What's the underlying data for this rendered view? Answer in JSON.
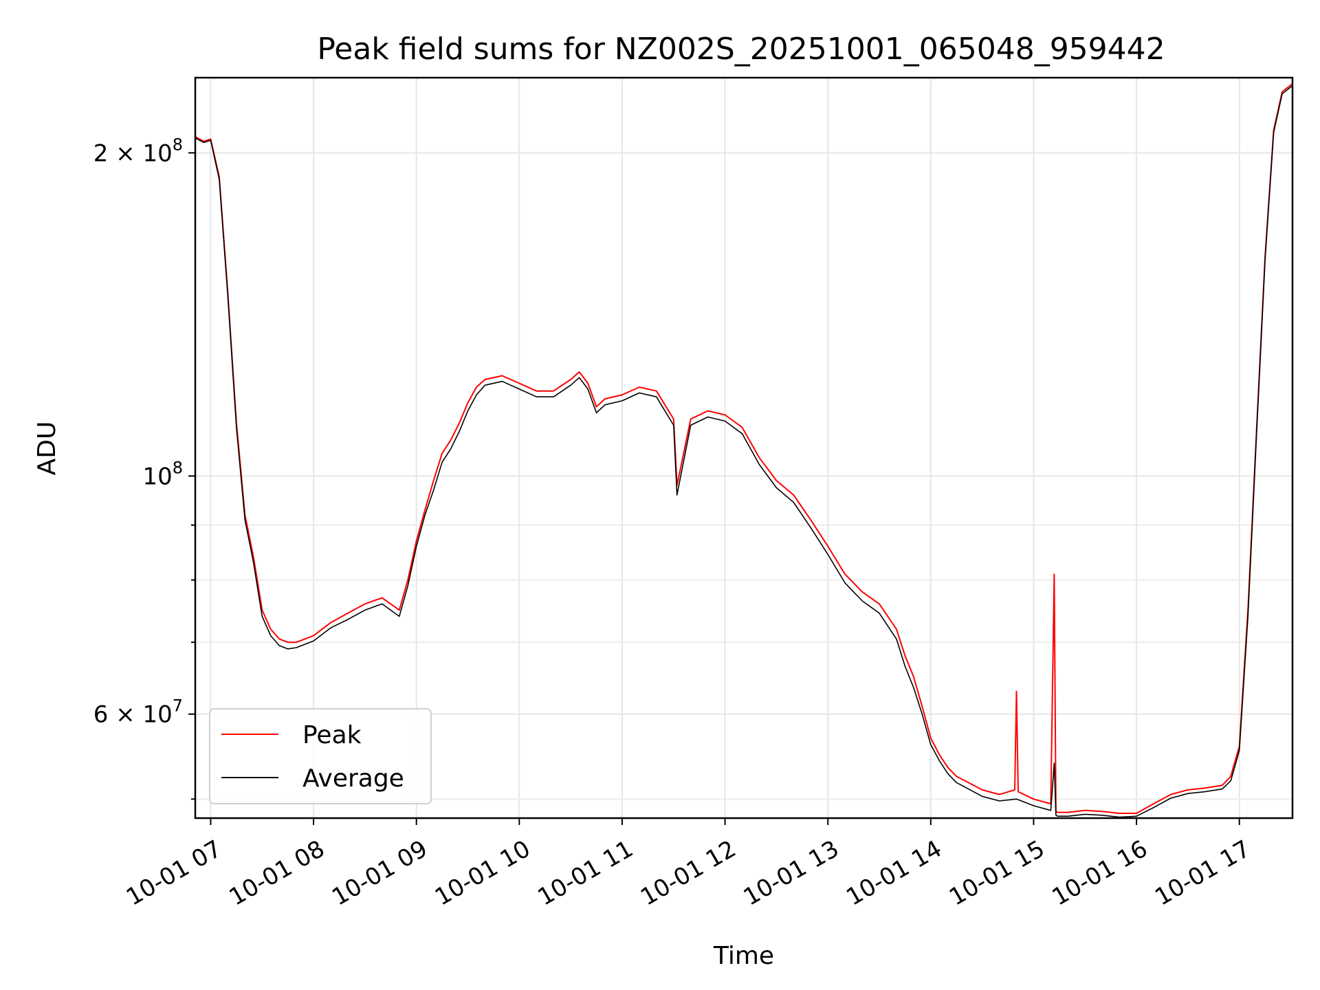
{
  "chart_data": {
    "type": "line",
    "title": "Peak field sums for NZ002S_20251001_065048_959442",
    "xlabel": "Time",
    "ylabel": "ADU",
    "yscale": "log",
    "ylim": [
      48000000,
      235000000
    ],
    "xlim": [
      "2025-10-01 06:51",
      "2025-10-01 17:31"
    ],
    "grid": true,
    "legend_position": "lower-left",
    "x_ticks": [
      {
        "value": "2025-10-01 07:00",
        "label": "10-01 07"
      },
      {
        "value": "2025-10-01 08:00",
        "label": "10-01 08"
      },
      {
        "value": "2025-10-01 09:00",
        "label": "10-01 09"
      },
      {
        "value": "2025-10-01 10:00",
        "label": "10-01 10"
      },
      {
        "value": "2025-10-01 11:00",
        "label": "10-01 11"
      },
      {
        "value": "2025-10-01 12:00",
        "label": "10-01 12"
      },
      {
        "value": "2025-10-01 13:00",
        "label": "10-01 13"
      },
      {
        "value": "2025-10-01 14:00",
        "label": "10-01 14"
      },
      {
        "value": "2025-10-01 15:00",
        "label": "10-01 15"
      },
      {
        "value": "2025-10-01 16:00",
        "label": "10-01 16"
      },
      {
        "value": "2025-10-01 17:00",
        "label": "10-01 17"
      }
    ],
    "y_major_ticks": [
      {
        "value": 60000000,
        "mantissa": "6",
        "exponent": "7"
      },
      {
        "value": 100000000,
        "mantissa": "",
        "exponent": "8"
      },
      {
        "value": 200000000,
        "mantissa": "2",
        "exponent": "8"
      }
    ],
    "y_minor_ticks": [
      50000000,
      70000000,
      80000000,
      90000000
    ],
    "series": [
      {
        "name": "Peak",
        "color": "#ff0000",
        "x": [
          "2025-10-01 06:51",
          "2025-10-01 06:56",
          "2025-10-01 07:00",
          "2025-10-01 07:05",
          "2025-10-01 07:10",
          "2025-10-01 07:15",
          "2025-10-01 07:20",
          "2025-10-01 07:25",
          "2025-10-01 07:30",
          "2025-10-01 07:35",
          "2025-10-01 07:40",
          "2025-10-01 07:45",
          "2025-10-01 07:50",
          "2025-10-01 08:00",
          "2025-10-01 08:10",
          "2025-10-01 08:20",
          "2025-10-01 08:30",
          "2025-10-01 08:40",
          "2025-10-01 08:50",
          "2025-10-01 08:55",
          "2025-10-01 09:00",
          "2025-10-01 09:05",
          "2025-10-01 09:10",
          "2025-10-01 09:15",
          "2025-10-01 09:20",
          "2025-10-01 09:25",
          "2025-10-01 09:30",
          "2025-10-01 09:35",
          "2025-10-01 09:40",
          "2025-10-01 09:50",
          "2025-10-01 10:00",
          "2025-10-01 10:10",
          "2025-10-01 10:20",
          "2025-10-01 10:30",
          "2025-10-01 10:35",
          "2025-10-01 10:40",
          "2025-10-01 10:45",
          "2025-10-01 10:50",
          "2025-10-01 11:00",
          "2025-10-01 11:10",
          "2025-10-01 11:20",
          "2025-10-01 11:30",
          "2025-10-01 11:32",
          "2025-10-01 11:40",
          "2025-10-01 11:50",
          "2025-10-01 12:00",
          "2025-10-01 12:10",
          "2025-10-01 12:20",
          "2025-10-01 12:30",
          "2025-10-01 12:40",
          "2025-10-01 12:50",
          "2025-10-01 13:00",
          "2025-10-01 13:10",
          "2025-10-01 13:20",
          "2025-10-01 13:30",
          "2025-10-01 13:40",
          "2025-10-01 13:45",
          "2025-10-01 13:50",
          "2025-10-01 13:55",
          "2025-10-01 14:00",
          "2025-10-01 14:05",
          "2025-10-01 14:10",
          "2025-10-01 14:15",
          "2025-10-01 14:20",
          "2025-10-01 14:30",
          "2025-10-01 14:40",
          "2025-10-01 14:49",
          "2025-10-01 14:50",
          "2025-10-01 14:51",
          "2025-10-01 15:00",
          "2025-10-01 15:10",
          "2025-10-01 15:12",
          "2025-10-01 15:13",
          "2025-10-01 15:14",
          "2025-10-01 15:20",
          "2025-10-01 15:30",
          "2025-10-01 15:40",
          "2025-10-01 15:50",
          "2025-10-01 16:00",
          "2025-10-01 16:10",
          "2025-10-01 16:20",
          "2025-10-01 16:30",
          "2025-10-01 16:40",
          "2025-10-01 16:50",
          "2025-10-01 16:55",
          "2025-10-01 17:00",
          "2025-10-01 17:05",
          "2025-10-01 17:10",
          "2025-10-01 17:15",
          "2025-10-01 17:20",
          "2025-10-01 17:25",
          "2025-10-01 17:31"
        ],
        "values": [
          207000000,
          205000000,
          206000000,
          190000000,
          148000000,
          112000000,
          92000000,
          84000000,
          75000000,
          72000000,
          70500000,
          70000000,
          70000000,
          71000000,
          73000000,
          74500000,
          76000000,
          77000000,
          75000000,
          80000000,
          87000000,
          93000000,
          99000000,
          105000000,
          108000000,
          112000000,
          117000000,
          121000000,
          123000000,
          124000000,
          122000000,
          120000000,
          120000000,
          123000000,
          125000000,
          122000000,
          116000000,
          118000000,
          119000000,
          121000000,
          120000000,
          113000000,
          98000000,
          113000000,
          115000000,
          114000000,
          111000000,
          104000000,
          99000000,
          96000000,
          91000000,
          86000000,
          81000000,
          78000000,
          76000000,
          72000000,
          68000000,
          65000000,
          61000000,
          57000000,
          55000000,
          53500000,
          52500000,
          52000000,
          51000000,
          50500000,
          51000000,
          63000000,
          50800000,
          50000000,
          49500000,
          81000000,
          48700000,
          48600000,
          48600000,
          48800000,
          48700000,
          48500000,
          48500000,
          49500000,
          50500000,
          51000000,
          51200000,
          51500000,
          52500000,
          56000000,
          75000000,
          110000000,
          160000000,
          210000000,
          228000000,
          232000000
        ]
      },
      {
        "name": "Average",
        "color": "#000000",
        "x": [
          "2025-10-01 06:51",
          "2025-10-01 06:56",
          "2025-10-01 07:00",
          "2025-10-01 07:05",
          "2025-10-01 07:10",
          "2025-10-01 07:15",
          "2025-10-01 07:20",
          "2025-10-01 07:25",
          "2025-10-01 07:30",
          "2025-10-01 07:35",
          "2025-10-01 07:40",
          "2025-10-01 07:45",
          "2025-10-01 07:50",
          "2025-10-01 08:00",
          "2025-10-01 08:10",
          "2025-10-01 08:20",
          "2025-10-01 08:30",
          "2025-10-01 08:40",
          "2025-10-01 08:50",
          "2025-10-01 08:55",
          "2025-10-01 09:00",
          "2025-10-01 09:05",
          "2025-10-01 09:10",
          "2025-10-01 09:15",
          "2025-10-01 09:20",
          "2025-10-01 09:25",
          "2025-10-01 09:30",
          "2025-10-01 09:35",
          "2025-10-01 09:40",
          "2025-10-01 09:50",
          "2025-10-01 10:00",
          "2025-10-01 10:10",
          "2025-10-01 10:20",
          "2025-10-01 10:30",
          "2025-10-01 10:35",
          "2025-10-01 10:40",
          "2025-10-01 10:45",
          "2025-10-01 10:50",
          "2025-10-01 11:00",
          "2025-10-01 11:10",
          "2025-10-01 11:20",
          "2025-10-01 11:30",
          "2025-10-01 11:32",
          "2025-10-01 11:40",
          "2025-10-01 11:50",
          "2025-10-01 12:00",
          "2025-10-01 12:10",
          "2025-10-01 12:20",
          "2025-10-01 12:30",
          "2025-10-01 12:40",
          "2025-10-01 12:50",
          "2025-10-01 13:00",
          "2025-10-01 13:10",
          "2025-10-01 13:20",
          "2025-10-01 13:30",
          "2025-10-01 13:40",
          "2025-10-01 13:45",
          "2025-10-01 13:50",
          "2025-10-01 13:55",
          "2025-10-01 14:00",
          "2025-10-01 14:05",
          "2025-10-01 14:10",
          "2025-10-01 14:15",
          "2025-10-01 14:20",
          "2025-10-01 14:30",
          "2025-10-01 14:40",
          "2025-10-01 14:50",
          "2025-10-01 15:00",
          "2025-10-01 15:10",
          "2025-10-01 15:12",
          "2025-10-01 15:13",
          "2025-10-01 15:14",
          "2025-10-01 15:20",
          "2025-10-01 15:30",
          "2025-10-01 15:40",
          "2025-10-01 15:50",
          "2025-10-01 16:00",
          "2025-10-01 16:10",
          "2025-10-01 16:20",
          "2025-10-01 16:30",
          "2025-10-01 16:40",
          "2025-10-01 16:50",
          "2025-10-01 16:55",
          "2025-10-01 17:00",
          "2025-10-01 17:05",
          "2025-10-01 17:10",
          "2025-10-01 17:15",
          "2025-10-01 17:20",
          "2025-10-01 17:25",
          "2025-10-01 17:31"
        ],
        "values": [
          206500000,
          204500000,
          205500000,
          189000000,
          147000000,
          111000000,
          91000000,
          83000000,
          74000000,
          71000000,
          69500000,
          69000000,
          69200000,
          70200000,
          72200000,
          73500000,
          75000000,
          76000000,
          74000000,
          79000000,
          86000000,
          92000000,
          97000000,
          103000000,
          106000000,
          110000000,
          115000000,
          119000000,
          121500000,
          122500000,
          120500000,
          118500000,
          118500000,
          121500000,
          123500000,
          120500000,
          114500000,
          116500000,
          117500000,
          119500000,
          118500000,
          111500000,
          96000000,
          111500000,
          113500000,
          112500000,
          109500000,
          102500000,
          97500000,
          94500000,
          89500000,
          84500000,
          79500000,
          76500000,
          74500000,
          70500000,
          66500000,
          63500000,
          60000000,
          56200000,
          54300000,
          52800000,
          51800000,
          51300000,
          50300000,
          49800000,
          50000000,
          49300000,
          48800000,
          54000000,
          48300000,
          48200000,
          48200000,
          48400000,
          48300000,
          48100000,
          48200000,
          49100000,
          50100000,
          50600000,
          50800000,
          51100000,
          52000000,
          55500000,
          74000000,
          109000000,
          159000000,
          209000000,
          227000000,
          231000000
        ]
      }
    ]
  }
}
